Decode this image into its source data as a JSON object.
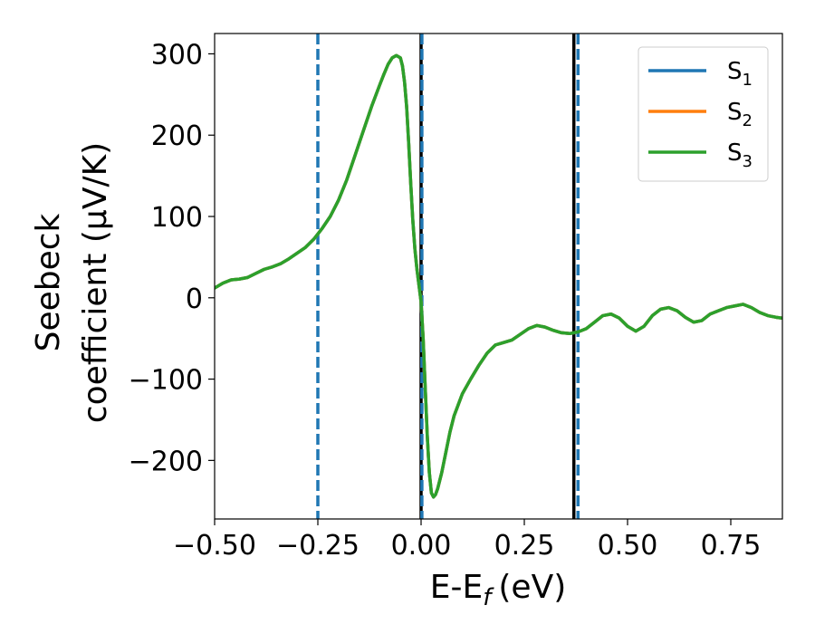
{
  "chart_data": {
    "type": "line",
    "xlabel": "E-E",
    "xlabel_sub": "f",
    "xlabel_unit": "(eV)",
    "ylabel_line1": "Seebeck",
    "ylabel_line2": "coefficient  (μV/K)",
    "xlim": [
      -0.5,
      0.875
    ],
    "ylim": [
      -272,
      325
    ],
    "x_ticks": [
      -0.5,
      -0.25,
      0.0,
      0.25,
      0.5,
      0.75
    ],
    "x_tick_labels": [
      "−0.50",
      "−0.25",
      "0.00",
      "0.25",
      "0.50",
      "0.75"
    ],
    "y_ticks": [
      -200,
      -100,
      0,
      100,
      200,
      300
    ],
    "y_tick_labels": [
      "−200",
      "−100",
      "0",
      "100",
      "200",
      "300"
    ],
    "grid": false,
    "legend_position": "top-right",
    "series": [
      {
        "name": "S",
        "name_sub": "1",
        "color": "#1f77b4",
        "x": [
          -0.5,
          -0.48,
          -0.46,
          -0.44,
          -0.42,
          -0.4,
          -0.38,
          -0.36,
          -0.34,
          -0.32,
          -0.3,
          -0.28,
          -0.26,
          -0.24,
          -0.22,
          -0.2,
          -0.18,
          -0.16,
          -0.14,
          -0.12,
          -0.1,
          -0.09,
          -0.08,
          -0.07,
          -0.06,
          -0.05,
          -0.045,
          -0.04,
          -0.035,
          -0.03,
          -0.025,
          -0.02,
          -0.015,
          -0.01,
          -0.005,
          0.0,
          0.005,
          0.01,
          0.015,
          0.02,
          0.025,
          0.03,
          0.035,
          0.04,
          0.05,
          0.06,
          0.07,
          0.08,
          0.1,
          0.12,
          0.14,
          0.16,
          0.18,
          0.2,
          0.22,
          0.24,
          0.26,
          0.28,
          0.3,
          0.32,
          0.34,
          0.36,
          0.38,
          0.4,
          0.42,
          0.44,
          0.46,
          0.48,
          0.5,
          0.52,
          0.54,
          0.56,
          0.58,
          0.6,
          0.62,
          0.64,
          0.66,
          0.68,
          0.7,
          0.72,
          0.74,
          0.76,
          0.78,
          0.8,
          0.82,
          0.84,
          0.86,
          0.875
        ],
        "y": [
          12,
          18,
          22,
          23,
          25,
          30,
          35,
          38,
          42,
          48,
          55,
          62,
          72,
          85,
          100,
          120,
          145,
          175,
          205,
          235,
          262,
          275,
          287,
          295,
          298,
          295,
          285,
          265,
          235,
          190,
          140,
          95,
          60,
          35,
          15,
          -5,
          -50,
          -110,
          -170,
          -215,
          -240,
          -245,
          -242,
          -235,
          -215,
          -190,
          -165,
          -145,
          -118,
          -100,
          -83,
          -68,
          -58,
          -55,
          -52,
          -45,
          -38,
          -34,
          -36,
          -40,
          -43,
          -44,
          -42,
          -38,
          -30,
          -22,
          -20,
          -25,
          -35,
          -41,
          -35,
          -22,
          -14,
          -12,
          -16,
          -24,
          -30,
          -28,
          -20,
          -16,
          -12,
          -10,
          -8,
          -12,
          -18,
          -22,
          -24,
          -25
        ]
      },
      {
        "name": "S",
        "name_sub": "2",
        "color": "#ff7f0e",
        "x": [
          -0.5,
          -0.48,
          -0.46,
          -0.44,
          -0.42,
          -0.4,
          -0.38,
          -0.36,
          -0.34,
          -0.32,
          -0.3,
          -0.28,
          -0.26,
          -0.24,
          -0.22,
          -0.2,
          -0.18,
          -0.16,
          -0.14,
          -0.12,
          -0.1,
          -0.09,
          -0.08,
          -0.07,
          -0.06,
          -0.05,
          -0.045,
          -0.04,
          -0.035,
          -0.03,
          -0.025,
          -0.02,
          -0.015,
          -0.01,
          -0.005,
          0.0,
          0.005,
          0.01,
          0.015,
          0.02,
          0.025,
          0.03,
          0.035,
          0.04,
          0.05,
          0.06,
          0.07,
          0.08,
          0.1,
          0.12,
          0.14,
          0.16,
          0.18,
          0.2,
          0.22,
          0.24,
          0.26,
          0.28,
          0.3,
          0.32,
          0.34,
          0.36,
          0.38,
          0.4,
          0.42,
          0.44,
          0.46,
          0.48,
          0.5,
          0.52,
          0.54,
          0.56,
          0.58,
          0.6,
          0.62,
          0.64,
          0.66,
          0.68,
          0.7,
          0.72,
          0.74,
          0.76,
          0.78,
          0.8,
          0.82,
          0.84,
          0.86,
          0.875
        ],
        "y": [
          12,
          18,
          22,
          23,
          25,
          30,
          35,
          38,
          42,
          48,
          55,
          62,
          72,
          85,
          100,
          120,
          145,
          175,
          205,
          235,
          262,
          275,
          287,
          295,
          298,
          295,
          285,
          265,
          235,
          190,
          140,
          95,
          60,
          35,
          15,
          -5,
          -50,
          -110,
          -170,
          -215,
          -240,
          -245,
          -242,
          -235,
          -215,
          -190,
          -165,
          -145,
          -118,
          -100,
          -83,
          -68,
          -58,
          -55,
          -52,
          -45,
          -38,
          -34,
          -36,
          -40,
          -43,
          -44,
          -42,
          -38,
          -30,
          -22,
          -20,
          -25,
          -35,
          -41,
          -35,
          -22,
          -14,
          -12,
          -16,
          -24,
          -30,
          -28,
          -20,
          -16,
          -12,
          -10,
          -8,
          -12,
          -18,
          -22,
          -24,
          -25
        ]
      },
      {
        "name": "S",
        "name_sub": "3",
        "color": "#2ca02c",
        "x": [
          -0.5,
          -0.48,
          -0.46,
          -0.44,
          -0.42,
          -0.4,
          -0.38,
          -0.36,
          -0.34,
          -0.32,
          -0.3,
          -0.28,
          -0.26,
          -0.24,
          -0.22,
          -0.2,
          -0.18,
          -0.16,
          -0.14,
          -0.12,
          -0.1,
          -0.09,
          -0.08,
          -0.07,
          -0.06,
          -0.05,
          -0.045,
          -0.04,
          -0.035,
          -0.03,
          -0.025,
          -0.02,
          -0.015,
          -0.01,
          -0.005,
          0.0,
          0.005,
          0.01,
          0.015,
          0.02,
          0.025,
          0.03,
          0.035,
          0.04,
          0.05,
          0.06,
          0.07,
          0.08,
          0.1,
          0.12,
          0.14,
          0.16,
          0.18,
          0.2,
          0.22,
          0.24,
          0.26,
          0.28,
          0.3,
          0.32,
          0.34,
          0.36,
          0.38,
          0.4,
          0.42,
          0.44,
          0.46,
          0.48,
          0.5,
          0.52,
          0.54,
          0.56,
          0.58,
          0.6,
          0.62,
          0.64,
          0.66,
          0.68,
          0.7,
          0.72,
          0.74,
          0.76,
          0.78,
          0.8,
          0.82,
          0.84,
          0.86,
          0.875
        ],
        "y": [
          12,
          18,
          22,
          23,
          25,
          30,
          35,
          38,
          42,
          48,
          55,
          62,
          72,
          85,
          100,
          120,
          145,
          175,
          205,
          235,
          262,
          275,
          287,
          295,
          298,
          295,
          285,
          265,
          235,
          190,
          140,
          95,
          60,
          35,
          15,
          -5,
          -50,
          -110,
          -170,
          -215,
          -240,
          -245,
          -242,
          -235,
          -215,
          -190,
          -165,
          -145,
          -118,
          -100,
          -83,
          -68,
          -58,
          -55,
          -52,
          -45,
          -38,
          -34,
          -36,
          -40,
          -43,
          -44,
          -42,
          -38,
          -30,
          -22,
          -20,
          -25,
          -35,
          -41,
          -35,
          -22,
          -14,
          -12,
          -16,
          -24,
          -30,
          -28,
          -20,
          -16,
          -12,
          -10,
          -8,
          -12,
          -18,
          -22,
          -24,
          -25
        ]
      }
    ],
    "vertical_lines": [
      {
        "x": -0.25,
        "color": "#1f77b4",
        "style": "dashed"
      },
      {
        "x": 0.0,
        "color": "#000000",
        "style": "solid"
      },
      {
        "x": 0.002,
        "color": "#1f77b4",
        "style": "dashed"
      },
      {
        "x": 0.37,
        "color": "#000000",
        "style": "solid"
      },
      {
        "x": 0.38,
        "color": "#1f77b4",
        "style": "dashed"
      }
    ]
  }
}
